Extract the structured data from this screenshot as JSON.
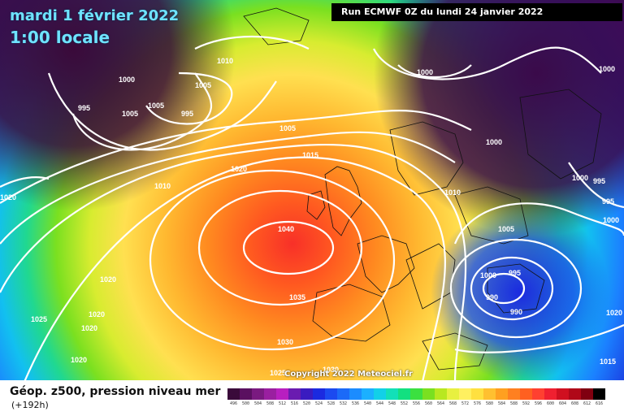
{
  "header": {
    "date": "mardi 1 février 2022",
    "time": "1:00 locale",
    "run": "Run ECMWF 0Z du lundi 24 janvier 2022"
  },
  "footer": {
    "product": "Géop. z500, pression niveau mer",
    "lead": "(+192h)",
    "copyright": "Copyright 2022 Meteociel.fr"
  },
  "legend": {
    "values": [
      "496",
      "500",
      "504",
      "508",
      "512",
      "516",
      "520",
      "524",
      "528",
      "532",
      "536",
      "540",
      "544",
      "548",
      "552",
      "556",
      "560",
      "564",
      "568",
      "572",
      "576",
      "580",
      "584",
      "588",
      "592",
      "596",
      "600",
      "604",
      "608",
      "612",
      "616"
    ],
    "colors": [
      "#3a0a3a",
      "#5a1060",
      "#7a1a80",
      "#9a1fa0",
      "#b81fc0",
      "#6a1bb0",
      "#3a1bc0",
      "#1b2ae0",
      "#1b4af0",
      "#1b6af8",
      "#1b8cff",
      "#1bb0ff",
      "#12d0e8",
      "#12e0b8",
      "#12e080",
      "#3be040",
      "#7ae020",
      "#b8e820",
      "#e8f040",
      "#fff060",
      "#ffe040",
      "#ffc030",
      "#ffa020",
      "#ff8020",
      "#ff6020",
      "#ff4030",
      "#f02030",
      "#d01020",
      "#b00818",
      "#800010",
      "#000000"
    ]
  },
  "isobars": {
    "labels": [
      "1010",
      "1000",
      "1005",
      "995",
      "1005",
      "995",
      "1005",
      "1000",
      "1000",
      "1000",
      "1005",
      "995",
      "1015",
      "1020",
      "1010",
      "1020",
      "1010",
      "1040",
      "1005",
      "1000",
      "995",
      "990",
      "990",
      "1020",
      "1035",
      "1025",
      "1020",
      "1020",
      "1030",
      "1020",
      "1025",
      "1030",
      "1020",
      "1015",
      "1000",
      "995",
      "1000"
    ]
  }
}
